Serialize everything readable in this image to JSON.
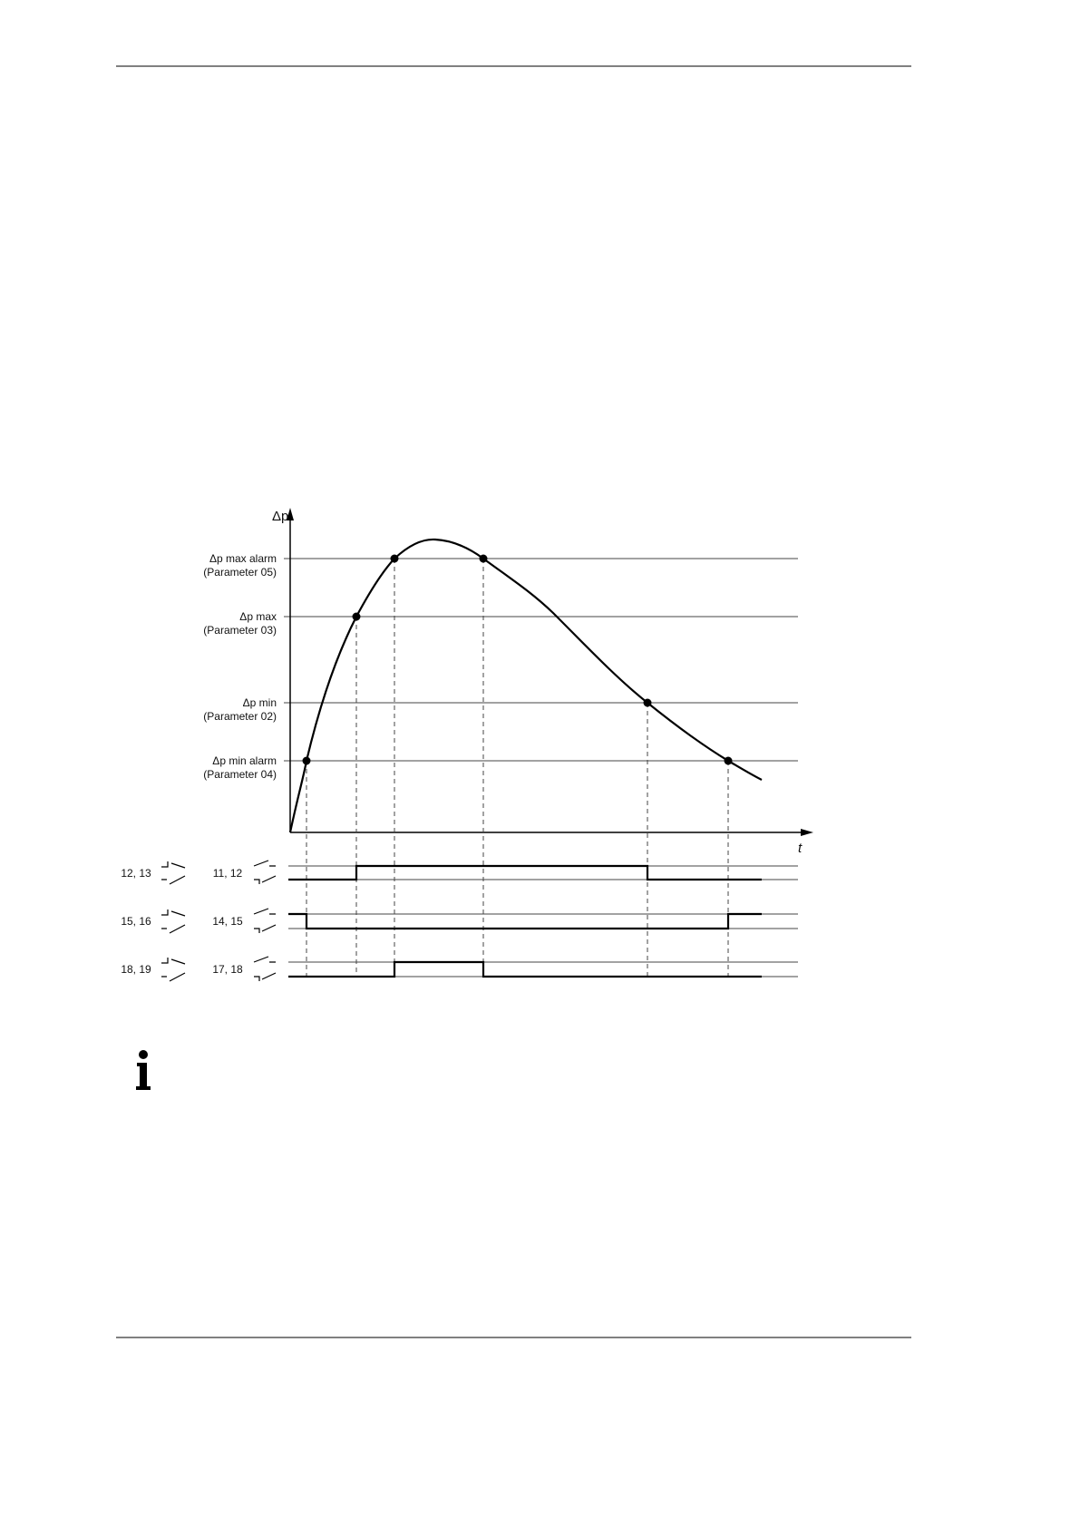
{
  "diagram": {
    "y_axis": "Δp",
    "x_axis": "t",
    "thresholds": [
      {
        "label": "Δp max alarm",
        "parameter": "(Parameter 05)"
      },
      {
        "label": "Δp max",
        "parameter": "(Parameter 03)"
      },
      {
        "label": "Δp min",
        "parameter": "(Parameter 02)"
      },
      {
        "label": "Δp min alarm",
        "parameter": "(Parameter 04)"
      }
    ],
    "contacts": [
      {
        "left": "12, 13",
        "right": "11, 12"
      },
      {
        "left": "15, 16",
        "right": "14, 15"
      },
      {
        "left": "18, 19",
        "right": "17, 18"
      }
    ]
  }
}
